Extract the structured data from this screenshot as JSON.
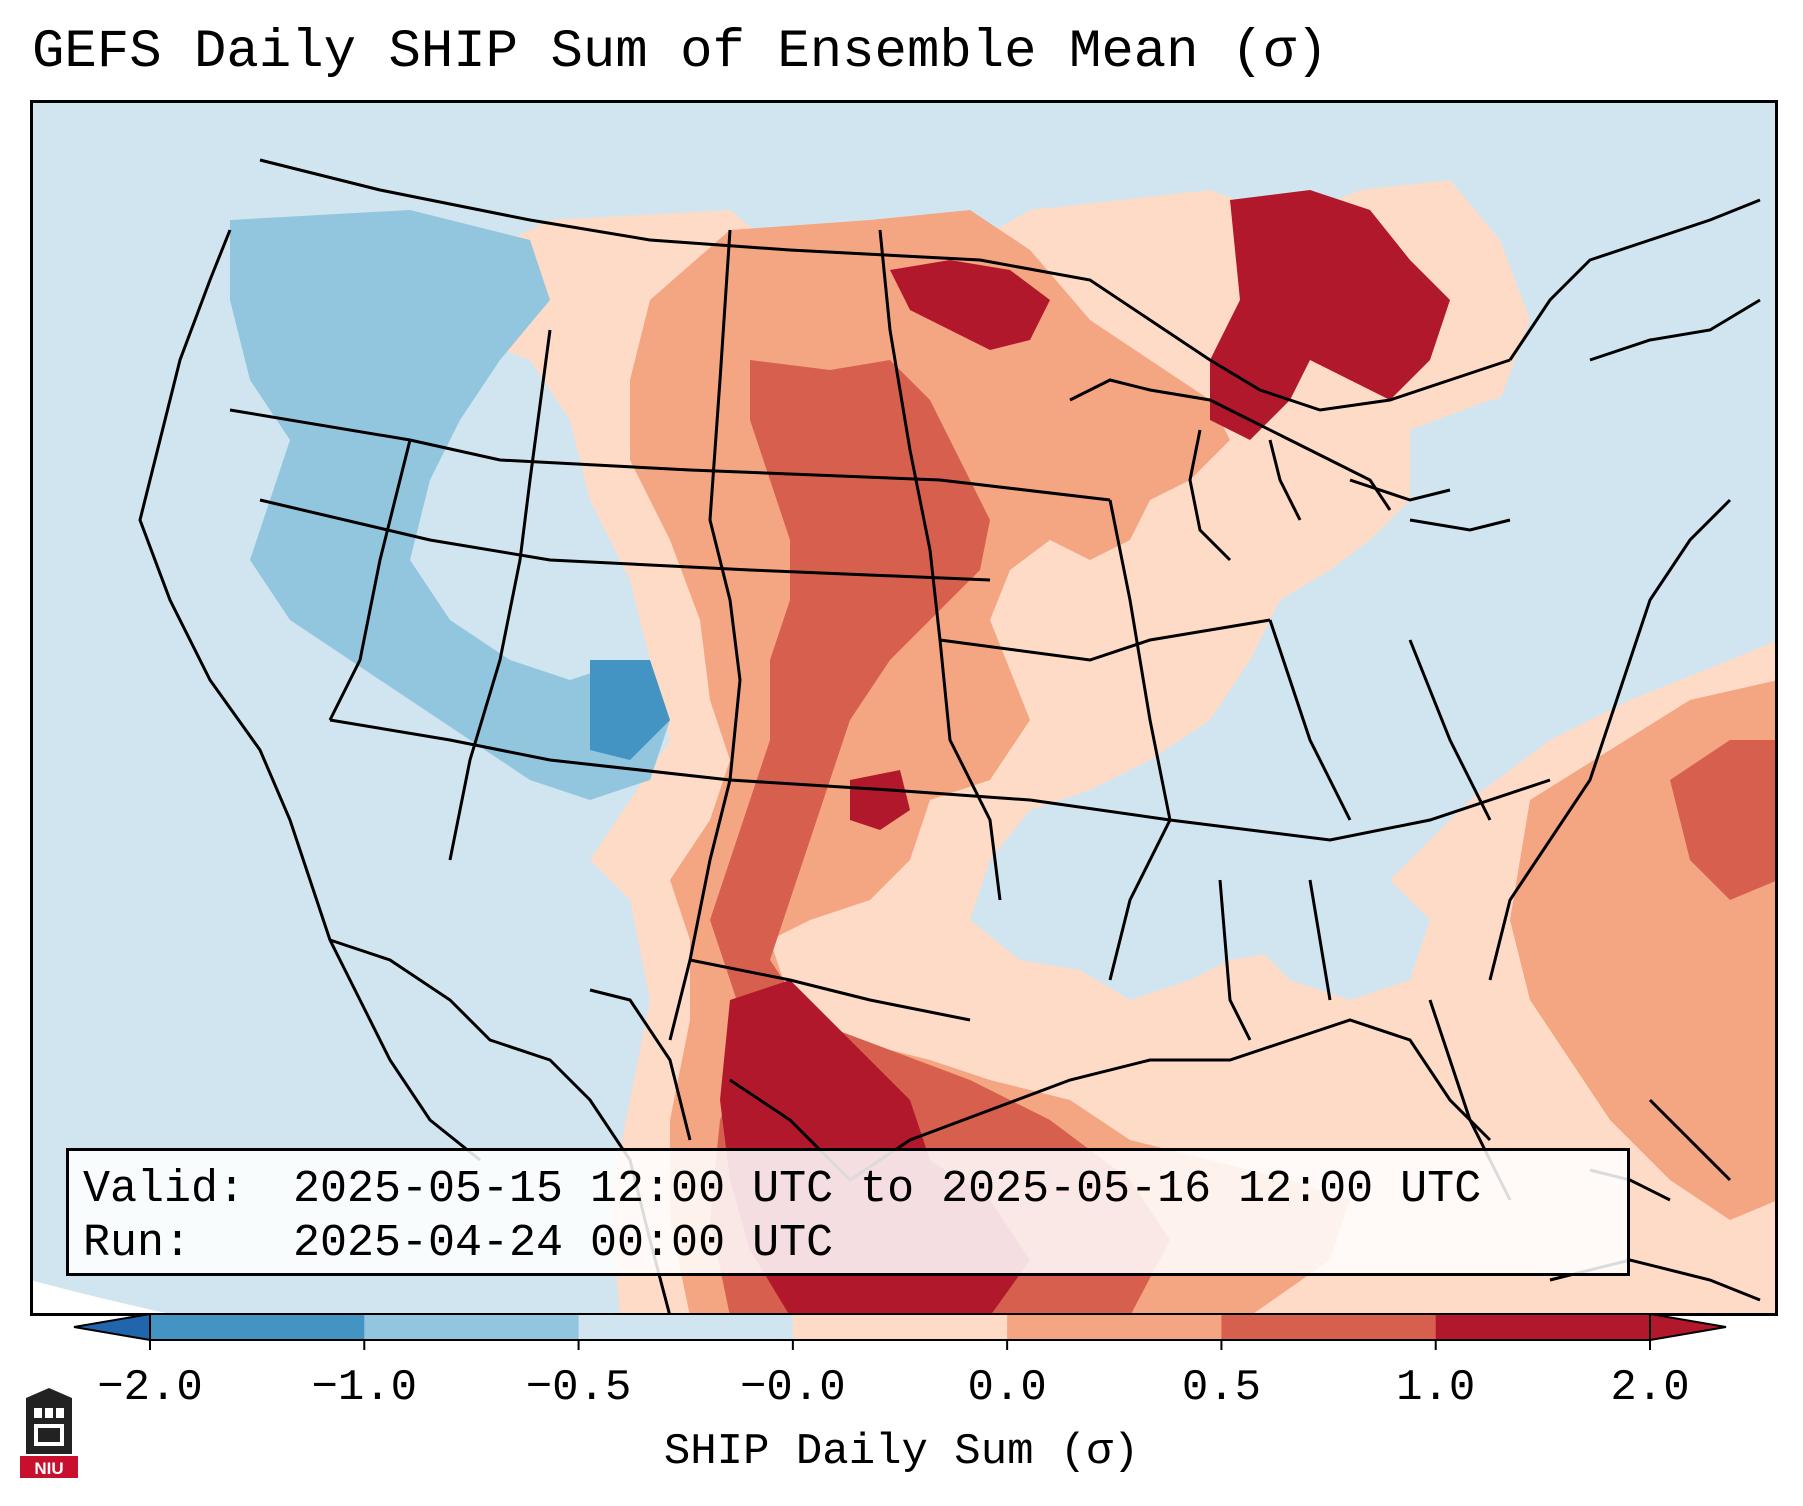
{
  "title": "GEFS Daily SHIP Sum of Ensemble Mean (σ)",
  "info": {
    "valid_label": "Valid:",
    "valid_value": "2025-05-15 12:00 UTC to 2025-05-16 12:00 UTC",
    "run_label": "Run:",
    "run_value": "2025-04-24 00:00 UTC"
  },
  "colorbar": {
    "label": "SHIP Daily Sum (σ)",
    "ticks": [
      "−2.0",
      "−1.0",
      "−0.5",
      "−0.0",
      "0.0",
      "0.5",
      "1.0",
      "2.0"
    ],
    "colors": [
      "#4393c3",
      "#92c5de",
      "#d1e5f0",
      "#fddbc7",
      "#f4a582",
      "#d6604d",
      "#b2182b"
    ],
    "under_color": "#2166ac",
    "over_color": "#b2182b"
  },
  "logo": {
    "text": "NIU",
    "color": "#c8102e"
  }
}
